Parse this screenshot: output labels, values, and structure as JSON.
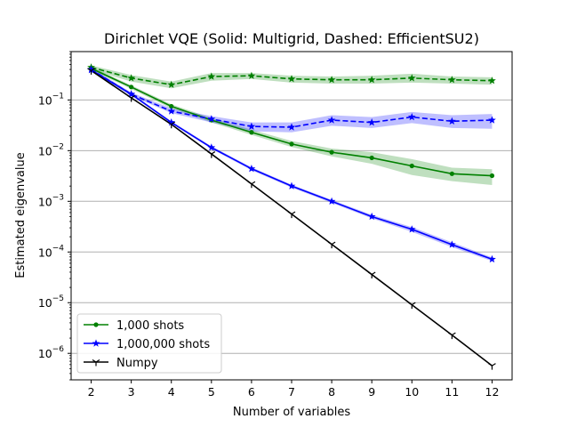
{
  "chart_data": {
    "type": "line",
    "title": "Dirichlet VQE (Solid: Multigrid, Dashed: EfficientSU2)",
    "xlabel": "Number of variables",
    "ylabel": "Estimated eigenvalue",
    "x": [
      2,
      3,
      4,
      5,
      6,
      7,
      8,
      9,
      10,
      11,
      12
    ],
    "xlim": [
      1.5,
      12.5
    ],
    "ylim": [
      3e-07,
      0.9
    ],
    "yscale": "log",
    "yticks": [
      {
        "value": 1e-06,
        "base": "10",
        "exp": "−6"
      },
      {
        "value": 1e-05,
        "base": "10",
        "exp": "−5"
      },
      {
        "value": 0.0001,
        "base": "10",
        "exp": "−4"
      },
      {
        "value": 0.001,
        "base": "10",
        "exp": "−3"
      },
      {
        "value": 0.01,
        "base": "10",
        "exp": "−2"
      },
      {
        "value": 0.1,
        "base": "10",
        "exp": "−1"
      }
    ],
    "grid": "y-major",
    "legend_position": "lower-left",
    "legend": [
      {
        "label": "1,000 shots",
        "color": "#008000",
        "marker": "dot"
      },
      {
        "label": "1,000,000 shots",
        "color": "#0000ff",
        "marker": "star"
      },
      {
        "label": "Numpy",
        "color": "#000000",
        "marker": "tri"
      }
    ],
    "series": [
      {
        "method": "Multigrid",
        "shots": "1,000 shots",
        "color": "#008000",
        "dash": "solid",
        "marker": "dot",
        "values": [
          0.42,
          0.18,
          0.075,
          0.04,
          0.023,
          0.0135,
          0.0093,
          0.0072,
          0.005,
          0.0035,
          0.0032
        ],
        "band_low": [
          0.39,
          0.165,
          0.068,
          0.036,
          0.0205,
          0.0118,
          0.0077,
          0.0055,
          0.0033,
          0.0025,
          0.0021
        ],
        "band_high": [
          0.45,
          0.195,
          0.082,
          0.044,
          0.026,
          0.0155,
          0.011,
          0.0093,
          0.0068,
          0.0046,
          0.0043
        ]
      },
      {
        "method": "EfficientSU2",
        "shots": "1,000 shots",
        "color": "#008000",
        "dash": "dashed",
        "marker": "star",
        "values": [
          0.44,
          0.27,
          0.2,
          0.29,
          0.3,
          0.26,
          0.25,
          0.25,
          0.27,
          0.25,
          0.24
        ],
        "band_low": [
          0.4,
          0.23,
          0.17,
          0.24,
          0.26,
          0.22,
          0.21,
          0.21,
          0.22,
          0.21,
          0.2
        ],
        "band_high": [
          0.48,
          0.31,
          0.23,
          0.34,
          0.34,
          0.3,
          0.29,
          0.3,
          0.33,
          0.29,
          0.28
        ]
      },
      {
        "method": "Multigrid",
        "shots": "1,000,000 shots",
        "color": "#0000ff",
        "dash": "solid",
        "marker": "star",
        "values": [
          0.39,
          0.13,
          0.036,
          0.0115,
          0.0044,
          0.002,
          0.001,
          0.0005,
          0.00028,
          0.00014,
          7.2e-05
        ],
        "band_low": [
          0.37,
          0.123,
          0.034,
          0.0108,
          0.0041,
          0.00187,
          0.00093,
          0.00046,
          0.00025,
          0.000125,
          6.6e-05
        ],
        "band_high": [
          0.41,
          0.137,
          0.038,
          0.0122,
          0.0047,
          0.00213,
          0.00107,
          0.00054,
          0.00031,
          0.000155,
          7.8e-05
        ]
      },
      {
        "method": "EfficientSU2",
        "shots": "1,000,000 shots",
        "color": "#0000ff",
        "dash": "dashed",
        "marker": "star",
        "values": [
          0.4,
          0.13,
          0.06,
          0.042,
          0.03,
          0.029,
          0.04,
          0.036,
          0.046,
          0.038,
          0.04
        ],
        "band_low": [
          0.37,
          0.12,
          0.055,
          0.036,
          0.024,
          0.023,
          0.031,
          0.028,
          0.035,
          0.028,
          0.027
        ],
        "band_high": [
          0.43,
          0.14,
          0.068,
          0.048,
          0.036,
          0.036,
          0.05,
          0.046,
          0.058,
          0.05,
          0.053
        ]
      },
      {
        "method": "Numpy",
        "shots": "Numpy",
        "color": "#000000",
        "dash": "solid",
        "marker": "tri",
        "values": [
          0.38,
          0.11,
          0.033,
          0.0086,
          0.0022,
          0.00056,
          0.000142,
          3.6e-05,
          9.1e-06,
          2.3e-06,
          5.7e-07
        ]
      }
    ]
  }
}
